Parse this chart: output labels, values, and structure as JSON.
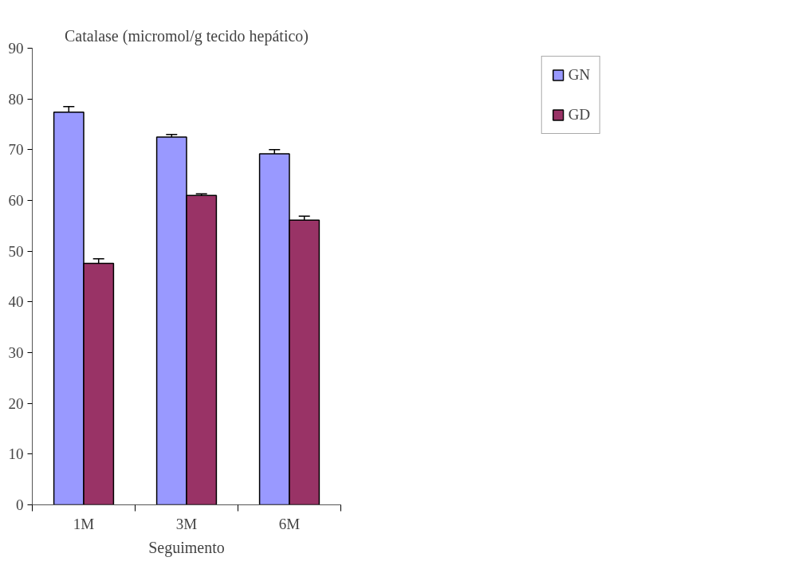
{
  "chart_data": {
    "type": "bar",
    "title": "Catalase (micromol/g tecido hepático)",
    "xlabel": "Seguimento",
    "categories": [
      "1M",
      "3M",
      "6M"
    ],
    "series": [
      {
        "name": "GN",
        "color": "#9999ff",
        "values": [
          77.4,
          72.5,
          69.2
        ],
        "errors": [
          1.1,
          0.5,
          0.8
        ]
      },
      {
        "name": "GD",
        "color": "#993366",
        "values": [
          47.6,
          61.0,
          56.1
        ],
        "errors": [
          0.9,
          0.3,
          0.8
        ]
      }
    ],
    "ylim": [
      0,
      90
    ],
    "yticks": [
      0,
      10,
      20,
      30,
      40,
      50,
      60,
      70,
      80,
      90
    ],
    "grid": false,
    "legend": "top right"
  }
}
